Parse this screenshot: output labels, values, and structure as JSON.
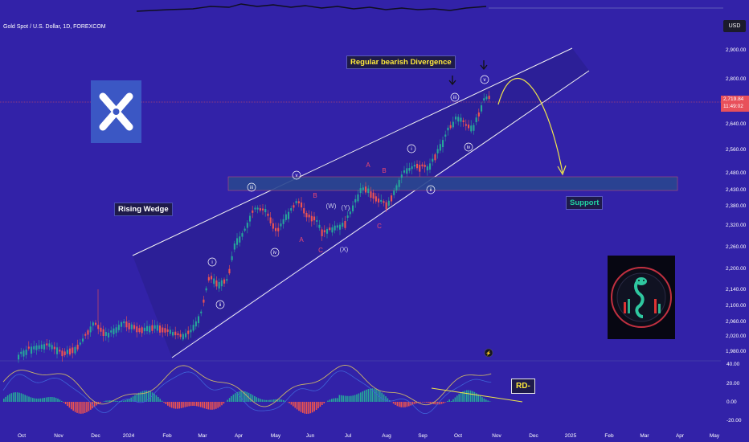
{
  "symbol_title": "Gold Spot / U.S. Dollar, 1D, FOREXCOM",
  "currency_button": "USD",
  "last_price": "2,719.84",
  "countdown": "11:49:02",
  "annotations": {
    "rising_wedge": "Rising Wedge",
    "divergence": "Regular bearish Divergence",
    "support": "Support",
    "rd": "RD-"
  },
  "colors": {
    "background": "#3222a8",
    "bull_candle": "#26a69a",
    "bear_candle": "#ef5350",
    "support_zone": "#2a4690",
    "wedge_fill": "#2a1f8e",
    "projection": "#f0e64a",
    "price_tag": "#e8505b",
    "oscillator_line": "#c9b26a"
  },
  "icons": [
    "arrow-down-icon",
    "arrow-down-icon",
    "curved-arrow-icon",
    "x-logo-icon",
    "cobra-vanguard-logo-icon",
    "snapshot-icon"
  ],
  "chart_data": {
    "type": "candlestick",
    "y_axis": {
      "ticks": [
        "2,900.00",
        "2,800.00",
        "2,640.00",
        "2,560.00",
        "2,480.00",
        "2,430.00",
        "2,380.00",
        "2,320.00",
        "2,260.00",
        "2,200.00",
        "2,140.00",
        "2,100.00",
        "2,060.00",
        "2,020.00",
        "1,980.00"
      ]
    },
    "x_axis": {
      "ticks": [
        "Oct",
        "Nov",
        "Dec",
        "2024",
        "Feb",
        "Mar",
        "Apr",
        "May",
        "Jun",
        "Jul",
        "Aug",
        "Sep",
        "Oct",
        "Nov",
        "Dec",
        "2025",
        "Feb",
        "Mar",
        "Apr",
        "May"
      ]
    },
    "wave_labels": [
      "i",
      "ii",
      "iii",
      "iv",
      "v",
      "A",
      "B",
      "C",
      "(W)",
      "(Y)",
      "(X)",
      "A",
      "B",
      "C",
      "i",
      "ii",
      "iii",
      "iv",
      "v"
    ],
    "support_zone": [
      2440,
      2475
    ],
    "oscillator": {
      "ticks": [
        "40.00",
        "20.00",
        "0.00",
        "-20.00"
      ]
    }
  }
}
